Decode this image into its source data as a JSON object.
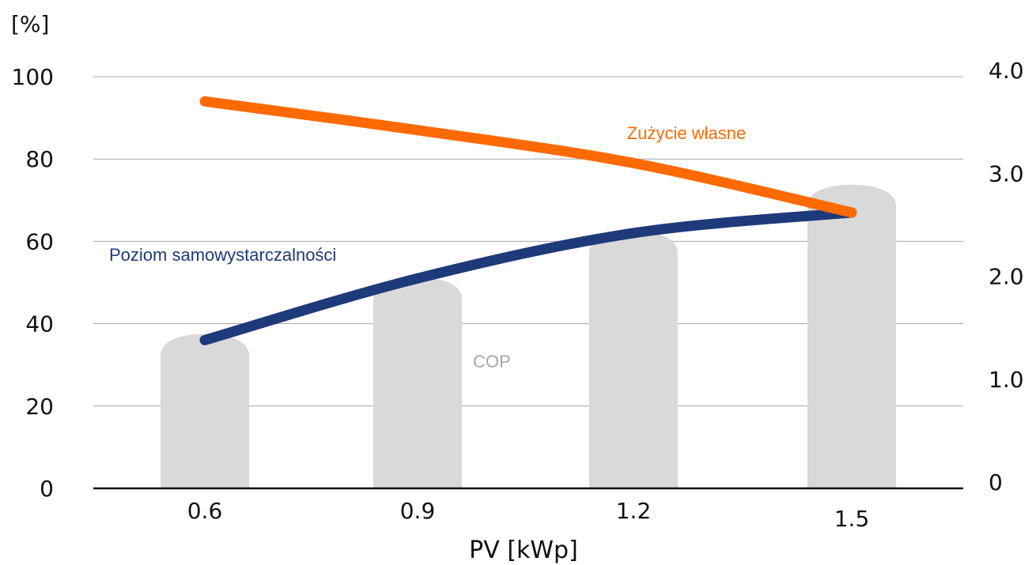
{
  "chart_data": {
    "type": "bar",
    "categories": [
      "0.6",
      "0.9",
      "1.2",
      "1.5"
    ],
    "xlabel": "PV [kWp]",
    "y_left": {
      "label": "[%]",
      "range": [
        0,
        100
      ],
      "ticks": [
        "0",
        "20",
        "40",
        "60",
        "80",
        "100"
      ]
    },
    "y_right": {
      "range": [
        0,
        4.0
      ],
      "ticks": [
        "0",
        "1.0",
        "2.0",
        "3.0",
        "4.0"
      ]
    },
    "grid": true,
    "series": [
      {
        "name": "COP",
        "type": "bar",
        "axis": "right",
        "values": [
          1.5,
          2.05,
          2.5,
          2.95
        ],
        "color": "#d9d9d9",
        "label_color": "#a6a6a6"
      },
      {
        "name": "Poziom samowystarczalności",
        "type": "line",
        "axis": "left",
        "values": [
          36,
          51,
          62,
          67
        ],
        "color": "#1f3a7a"
      },
      {
        "name": "Zużycie własne",
        "type": "line",
        "axis": "left",
        "values": [
          94,
          87,
          79,
          67
        ],
        "color": "#ff6a00"
      }
    ]
  }
}
